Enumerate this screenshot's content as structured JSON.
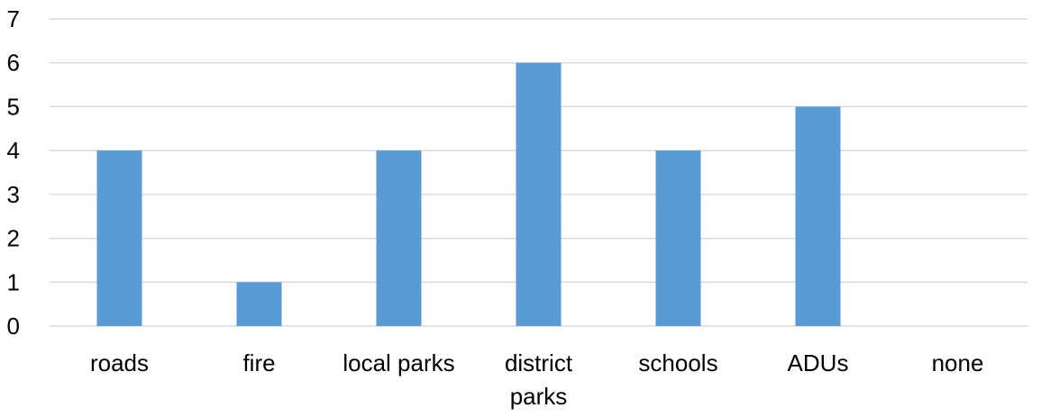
{
  "chart_data": {
    "type": "bar",
    "categories": [
      "roads",
      "fire",
      "local parks",
      "district parks",
      "schools",
      "ADUs",
      "none"
    ],
    "category_label_lines": [
      [
        "roads"
      ],
      [
        "fire"
      ],
      [
        "local parks"
      ],
      [
        "district",
        "parks"
      ],
      [
        "schools"
      ],
      [
        "ADUs"
      ],
      [
        "none"
      ]
    ],
    "values": [
      4,
      1,
      4,
      6,
      4,
      5,
      0
    ],
    "ylim": [
      0,
      7
    ],
    "yticks": [
      0,
      1,
      2,
      3,
      4,
      5,
      6,
      7
    ],
    "ytick_labels": [
      "0",
      "1",
      "2",
      "3",
      "4",
      "5",
      "6",
      "7"
    ],
    "grid": true,
    "legend": "none",
    "title": "",
    "xlabel": "",
    "ylabel": "",
    "colors": {
      "bar": "#5b9bd5",
      "grid": "#d9d9d9",
      "text": "#000000"
    }
  }
}
